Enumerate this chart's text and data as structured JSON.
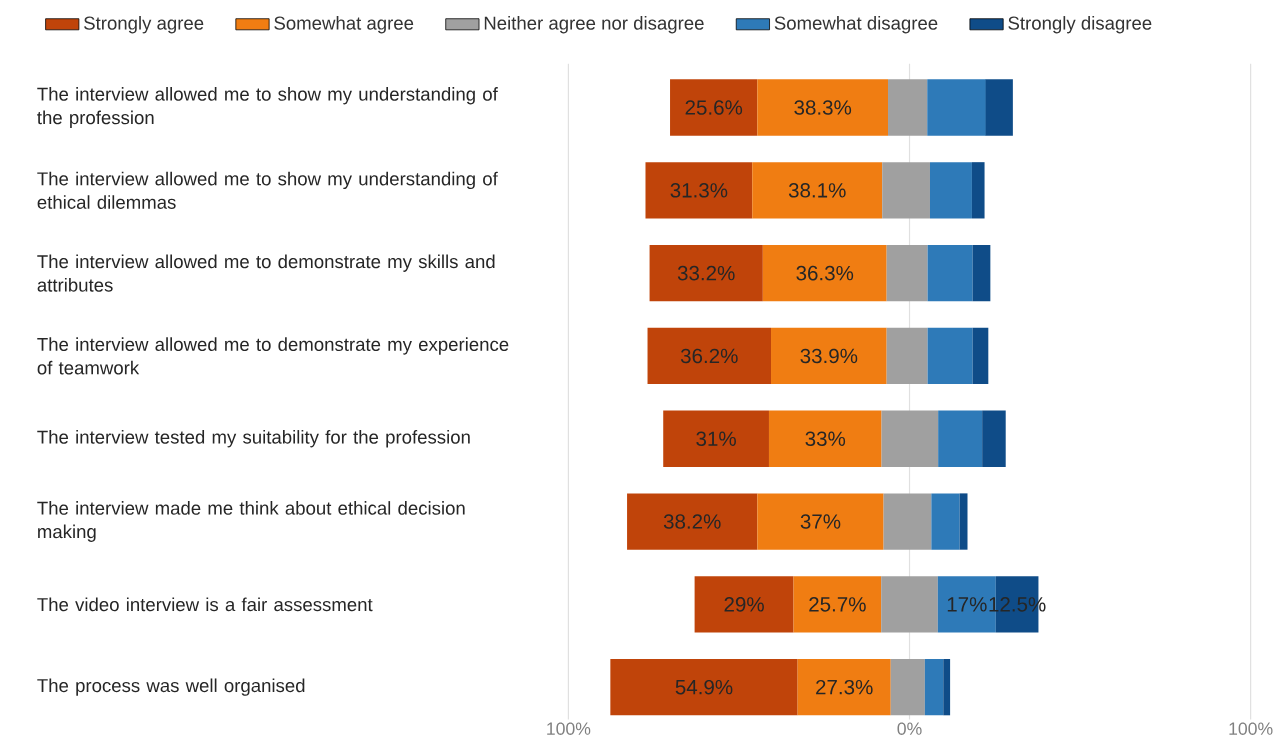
{
  "chart_data": {
    "type": "bar",
    "orientation": "horizontal",
    "categories": [
      "The interview allowed me to show my understanding of the profession",
      "The interview allowed me to show my understanding of ethical dilemmas",
      "The interview allowed me to demonstrate my skills and attributes",
      "The interview allowed me to demonstrate my experience of teamwork",
      "The interview tested my suitability for the profession",
      "The interview made me think about ethical decision making",
      "The video interview is a fair assessment",
      "The process was well organised"
    ],
    "series": [
      {
        "name": "Strongly agree",
        "color": "#c0440a",
        "values": [
          25.6,
          31.3,
          33.2,
          36.2,
          31,
          38.2,
          29,
          54.9
        ],
        "base": [
          -70.2,
          -77.4,
          -76.2,
          -76.8,
          -72.2,
          -82.8,
          -63.0,
          -87.7
        ],
        "value_labels": [
          "25.6%",
          "31.3%",
          "33.2%",
          "36.2%",
          "31%",
          "38.2%",
          "29%",
          "54.9%"
        ]
      },
      {
        "name": "Somewhat agree",
        "color": "#f07d12",
        "values": [
          38.3,
          38.1,
          36.3,
          33.9,
          33,
          37,
          25.7,
          27.3
        ],
        "base": [
          -44.6,
          -46.1,
          -43.0,
          -40.6,
          -41.2,
          -44.6,
          -34.0,
          -32.8
        ],
        "value_labels": [
          "38.3%",
          "38.1%",
          "36.3%",
          "33.9%",
          "33%",
          "37%",
          "25.7%",
          "27.3%"
        ]
      },
      {
        "name": "Neither agree nor disagree",
        "color": "#a0a0a0",
        "values": [
          11.5,
          14.0,
          12.0,
          12.0,
          16.6,
          14.0,
          16.6,
          10.0
        ],
        "base": [
          -6.3,
          -8.0,
          -6.7,
          -6.7,
          -8.2,
          -7.6,
          -8.3,
          -5.5
        ]
      },
      {
        "name": "Somewhat disagree",
        "color": "#2e7ab8",
        "values": [
          17.2,
          12.3,
          13.2,
          13.2,
          12.9,
          8.3,
          17,
          5.4
        ],
        "base": [
          5.2,
          6.0,
          5.3,
          5.3,
          8.4,
          6.4,
          8.3,
          4.5
        ],
        "value_labels": [
          null,
          null,
          null,
          null,
          null,
          null,
          "17%",
          null
        ]
      },
      {
        "name": "Strongly disagree",
        "color": "#0f4c88",
        "values": [
          8.0,
          3.7,
          5.2,
          4.6,
          6.9,
          2.3,
          12.5,
          2.0
        ],
        "base": [
          22.3,
          18.3,
          18.5,
          18.5,
          21.3,
          14.7,
          25.3,
          9.9
        ],
        "value_labels": [
          null,
          null,
          null,
          null,
          null,
          null,
          "12.5%",
          null
        ]
      }
    ],
    "xlim": [
      -100,
      100
    ],
    "xticks": [
      {
        "value": -100,
        "label": "100%"
      },
      {
        "value": 0,
        "label": "0%"
      },
      {
        "value": 100,
        "label": "100%"
      }
    ],
    "grid": "x",
    "legend": "top"
  }
}
